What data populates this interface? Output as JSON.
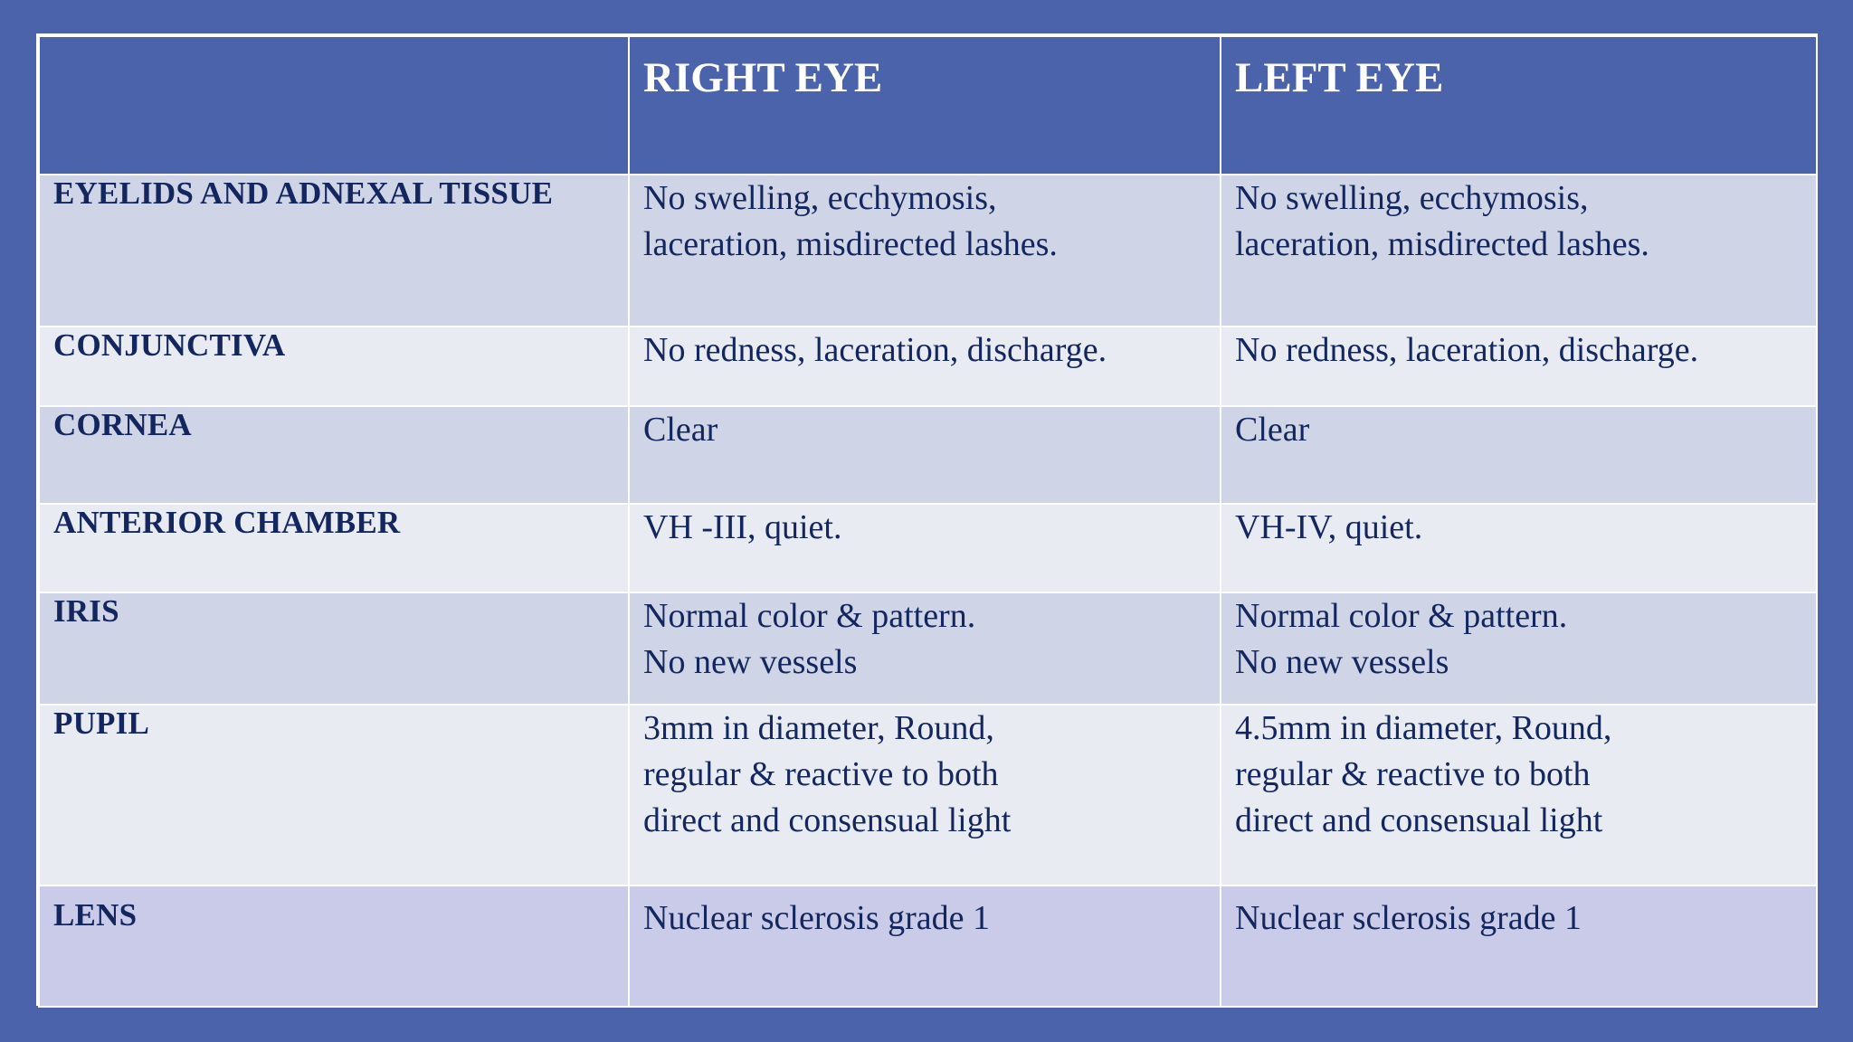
{
  "table": {
    "header": {
      "label": "",
      "right_eye": "RIGHT EYE",
      "left_eye": "LEFT EYE"
    },
    "rows": [
      {
        "label": "EYELIDS AND ADNEXAL TISSUE",
        "right": [
          "No swelling, ecchymosis,",
          "laceration, misdirected lashes."
        ],
        "left": [
          "No swelling, ecchymosis,",
          "laceration, misdirected lashes."
        ]
      },
      {
        "label": "CONJUNCTIVA",
        "right": [
          "No redness, laceration, discharge."
        ],
        "left": [
          "No redness, laceration, discharge."
        ]
      },
      {
        "label": "CORNEA",
        "right": [
          "Clear"
        ],
        "left": [
          "Clear"
        ]
      },
      {
        "label": "ANTERIOR CHAMBER",
        "right": [
          "VH -III, quiet."
        ],
        "left": [
          "VH-IV, quiet."
        ]
      },
      {
        "label": "IRIS",
        "right": [
          "Normal color & pattern.",
          "No new vessels"
        ],
        "left": [
          "Normal color & pattern.",
          "No new vessels"
        ]
      },
      {
        "label": "PUPIL",
        "right": [
          "3mm in diameter, Round,",
          "regular & reactive to both",
          "direct and consensual light"
        ],
        "left": [
          "4.5mm in diameter, Round,",
          "regular & reactive to both",
          "direct and consensual light"
        ]
      },
      {
        "label": "LENS",
        "right": [
          "Nuclear sclerosis grade 1"
        ],
        "left": [
          "Nuclear sclerosis grade 1"
        ]
      }
    ]
  }
}
